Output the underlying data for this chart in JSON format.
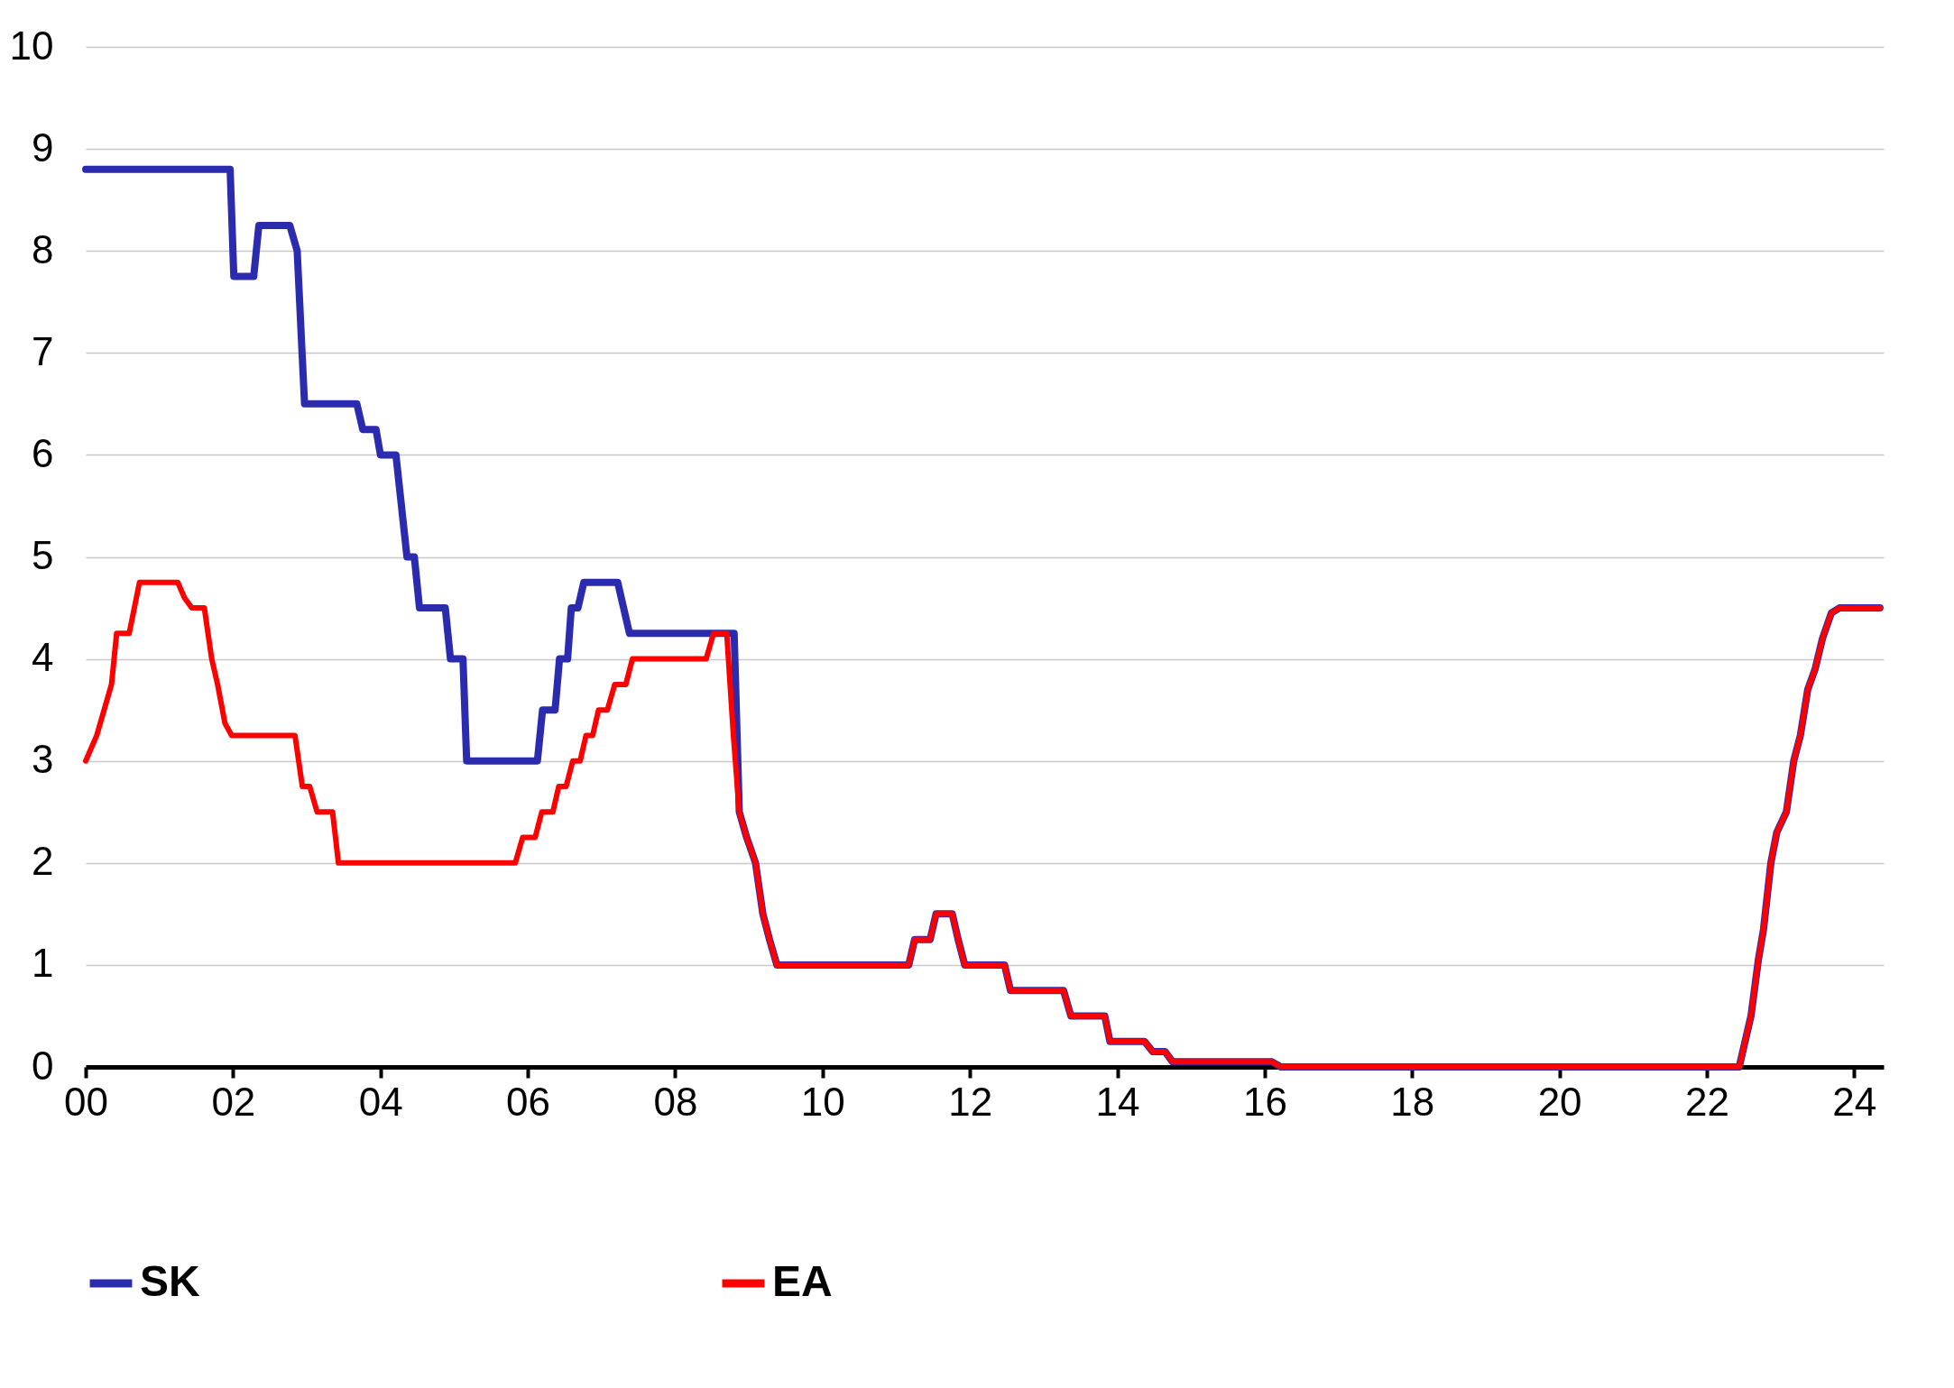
{
  "chart_data": {
    "type": "line",
    "xlim": [
      2000,
      2024.4
    ],
    "ylim": [
      0,
      10
    ],
    "xticks": [
      {
        "value": 2000,
        "label": "00"
      },
      {
        "value": 2002,
        "label": "02"
      },
      {
        "value": 2004,
        "label": "04"
      },
      {
        "value": 2006,
        "label": "06"
      },
      {
        "value": 2008,
        "label": "08"
      },
      {
        "value": 2010,
        "label": "10"
      },
      {
        "value": 2012,
        "label": "12"
      },
      {
        "value": 2014,
        "label": "14"
      },
      {
        "value": 2016,
        "label": "16"
      },
      {
        "value": 2018,
        "label": "18"
      },
      {
        "value": 2020,
        "label": "20"
      },
      {
        "value": 2022,
        "label": "22"
      },
      {
        "value": 2024,
        "label": "24"
      }
    ],
    "yticks": [
      0,
      1,
      2,
      3,
      4,
      5,
      6,
      7,
      8,
      9,
      10
    ],
    "grid": "y",
    "legend": "bottom",
    "line_style": "solid",
    "marker": "none",
    "series": [
      {
        "name": "SK",
        "color": "#2b2bb0",
        "x": [
          2000,
          2001.96,
          2002.01,
          2002.28,
          2002.35,
          2002.77,
          2002.87,
          2002.97,
          2003.68,
          2003.76,
          2003.94,
          2004.0,
          2004.21,
          2004.36,
          2004.46,
          2004.53,
          2004.88,
          2004.95,
          2005.12,
          2005.17,
          2006.13,
          2006.2,
          2006.37,
          2006.43,
          2006.54,
          2006.59,
          2006.68,
          2006.76,
          2007.22,
          2007.3,
          2007.38,
          2008.8,
          2008.87,
          2008.97,
          2009.09,
          2009.19,
          2009.28,
          2009.38,
          2011.17,
          2011.25,
          2011.46,
          2011.54,
          2011.76,
          2011.84,
          2011.93,
          2012.47,
          2012.55,
          2013.27,
          2013.37,
          2013.83,
          2013.9,
          2014.37,
          2014.48,
          2014.65,
          2014.75,
          2016.1,
          2016.22,
          2022.44,
          2022.6,
          2022.7,
          2022.77,
          2022.87,
          2022.95,
          2023.08,
          2023.18,
          2023.27,
          2023.37,
          2023.47,
          2023.57,
          2023.69,
          2023.8,
          2024.35
        ],
        "values": [
          8.8,
          8.8,
          7.75,
          7.75,
          8.25,
          8.25,
          8.0,
          6.5,
          6.5,
          6.25,
          6.25,
          6.0,
          6.0,
          5.0,
          5.0,
          4.5,
          4.5,
          4.0,
          4.0,
          3.0,
          3.0,
          3.5,
          3.5,
          4.0,
          4.0,
          4.5,
          4.5,
          4.75,
          4.75,
          4.5,
          4.25,
          4.25,
          2.5,
          2.25,
          2.0,
          1.5,
          1.25,
          1.0,
          1.0,
          1.25,
          1.25,
          1.5,
          1.5,
          1.25,
          1.0,
          1.0,
          0.75,
          0.75,
          0.5,
          0.5,
          0.25,
          0.25,
          0.15,
          0.15,
          0.05,
          0.05,
          0,
          0,
          0.5,
          1.05,
          1.35,
          2.0,
          2.3,
          2.5,
          3.0,
          3.25,
          3.7,
          3.9,
          4.2,
          4.45,
          4.5,
          4.5
        ]
      },
      {
        "name": "EA",
        "color": "#ff0000",
        "x": [
          2000,
          2000.15,
          2000.25,
          2000.35,
          2000.42,
          2000.49,
          2000.59,
          2000.73,
          2000.81,
          2001.25,
          2001.34,
          2001.44,
          2001.61,
          2001.71,
          2001.79,
          2001.89,
          2001.98,
          2002.84,
          2002.94,
          2003.04,
          2003.14,
          2003.35,
          2003.43,
          2005.83,
          2005.93,
          2006.1,
          2006.19,
          2006.34,
          2006.42,
          2006.52,
          2006.61,
          2006.71,
          2006.79,
          2006.88,
          2006.96,
          2007.08,
          2007.18,
          2007.33,
          2007.42,
          2008.42,
          2008.52,
          2008.7,
          2008.79,
          2008.87,
          2008.97,
          2009.09,
          2009.19,
          2009.28,
          2009.38,
          2011.17,
          2011.25,
          2011.46,
          2011.54,
          2011.76,
          2011.84,
          2011.93,
          2012.47,
          2012.55,
          2013.27,
          2013.37,
          2013.83,
          2013.9,
          2014.37,
          2014.48,
          2014.65,
          2014.75,
          2016.1,
          2016.22,
          2022.44,
          2022.6,
          2022.7,
          2022.77,
          2022.87,
          2022.95,
          2023.08,
          2023.18,
          2023.27,
          2023.37,
          2023.47,
          2023.57,
          2023.69,
          2023.8,
          2024.35
        ],
        "values": [
          3.0,
          3.25,
          3.5,
          3.75,
          4.25,
          4.25,
          4.25,
          4.75,
          4.75,
          4.75,
          4.6,
          4.5,
          4.5,
          4.0,
          3.75,
          3.37,
          3.25,
          3.25,
          2.75,
          2.75,
          2.5,
          2.5,
          2.0,
          2.0,
          2.25,
          2.25,
          2.5,
          2.5,
          2.75,
          2.75,
          3.0,
          3.0,
          3.25,
          3.25,
          3.5,
          3.5,
          3.75,
          3.75,
          4.0,
          4.0,
          4.25,
          4.25,
          3.25,
          2.5,
          2.25,
          2.0,
          1.5,
          1.25,
          1.0,
          1.0,
          1.25,
          1.25,
          1.5,
          1.5,
          1.25,
          1.0,
          1.0,
          0.75,
          0.75,
          0.5,
          0.5,
          0.25,
          0.25,
          0.15,
          0.15,
          0.05,
          0.05,
          0,
          0,
          0.5,
          1.05,
          1.35,
          2.0,
          2.3,
          2.5,
          3.0,
          3.25,
          3.7,
          3.9,
          4.2,
          4.45,
          4.5,
          4.5
        ]
      }
    ]
  }
}
